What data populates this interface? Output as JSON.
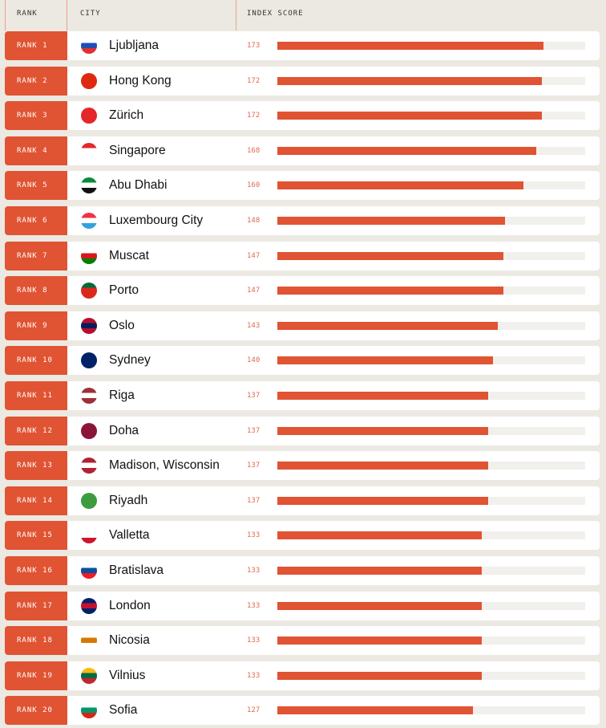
{
  "header": {
    "rank": "RANK",
    "city": "CITY",
    "score": "INDEX SCORE"
  },
  "colors": {
    "accent": "#e05333",
    "background": "#ebe9e2"
  },
  "chart_data": {
    "type": "bar",
    "orientation": "horizontal",
    "xlim": [
      0,
      200
    ],
    "rows": [
      {
        "rank": "RANK 1",
        "city": "Ljubljana",
        "score": 173,
        "flag": [
          "#fff",
          "#1f4fb4",
          "#e03030"
        ]
      },
      {
        "rank": "RANK 2",
        "city": "Hong Kong",
        "score": 172,
        "flag": [
          "#de2910",
          "#de2910",
          "#de2910"
        ]
      },
      {
        "rank": "RANK 3",
        "city": "Zürich",
        "score": 172,
        "flag": [
          "#e5262b",
          "#e5262b",
          "#e5262b"
        ]
      },
      {
        "rank": "RANK 4",
        "city": "Singapore",
        "score": 168,
        "flag": [
          "#e5262b",
          "#fff",
          "#fff"
        ]
      },
      {
        "rank": "RANK 5",
        "city": "Abu Dhabi",
        "score": 160,
        "flag": [
          "#0a8a3a",
          "#fff",
          "#111"
        ]
      },
      {
        "rank": "RANK 6",
        "city": "Luxembourg City",
        "score": 148,
        "flag": [
          "#ef3340",
          "#fff",
          "#33a3dc"
        ]
      },
      {
        "rank": "RANK 7",
        "city": "Muscat",
        "score": 147,
        "flag": [
          "#fff",
          "#db161b",
          "#008000"
        ]
      },
      {
        "rank": "RANK 8",
        "city": "Porto",
        "score": 147,
        "flag": [
          "#046a38",
          "#da291c",
          "#da291c"
        ]
      },
      {
        "rank": "RANK 9",
        "city": "Oslo",
        "score": 143,
        "flag": [
          "#ba0c2f",
          "#00205b",
          "#ba0c2f"
        ]
      },
      {
        "rank": "RANK 10",
        "city": "Sydney",
        "score": 140,
        "flag": [
          "#012169",
          "#012169",
          "#012169"
        ]
      },
      {
        "rank": "RANK 11",
        "city": "Riga",
        "score": 137,
        "flag": [
          "#9e3039",
          "#fff",
          "#9e3039"
        ]
      },
      {
        "rank": "RANK 12",
        "city": "Doha",
        "score": 137,
        "flag": [
          "#8a1538",
          "#8a1538",
          "#8a1538"
        ]
      },
      {
        "rank": "RANK 13",
        "city": "Madison, Wisconsin",
        "score": 137,
        "flag": [
          "#b22234",
          "#fff",
          "#b22234"
        ]
      },
      {
        "rank": "RANK 14",
        "city": "Riyadh",
        "score": 137,
        "flag": [
          "#3d9b40",
          "#3d9b40",
          "#3d9b40"
        ]
      },
      {
        "rank": "RANK 15",
        "city": "Valletta",
        "score": 133,
        "flag": [
          "#fff",
          "#fff",
          "#cf142b"
        ]
      },
      {
        "rank": "RANK 16",
        "city": "Bratislava",
        "score": 133,
        "flag": [
          "#fff",
          "#0b4ea2",
          "#ee1c25"
        ]
      },
      {
        "rank": "RANK 17",
        "city": "London",
        "score": 133,
        "flag": [
          "#012169",
          "#c8102e",
          "#012169"
        ]
      },
      {
        "rank": "RANK 18",
        "city": "Nicosia",
        "score": 133,
        "flag": [
          "#fff",
          "#d57800",
          "#fff"
        ]
      },
      {
        "rank": "RANK 19",
        "city": "Vilnius",
        "score": 133,
        "flag": [
          "#fdb913",
          "#006a44",
          "#c1272d"
        ]
      },
      {
        "rank": "RANK 20",
        "city": "Sofia",
        "score": 127,
        "flag": [
          "#fff",
          "#00966e",
          "#d62612"
        ]
      }
    ]
  }
}
